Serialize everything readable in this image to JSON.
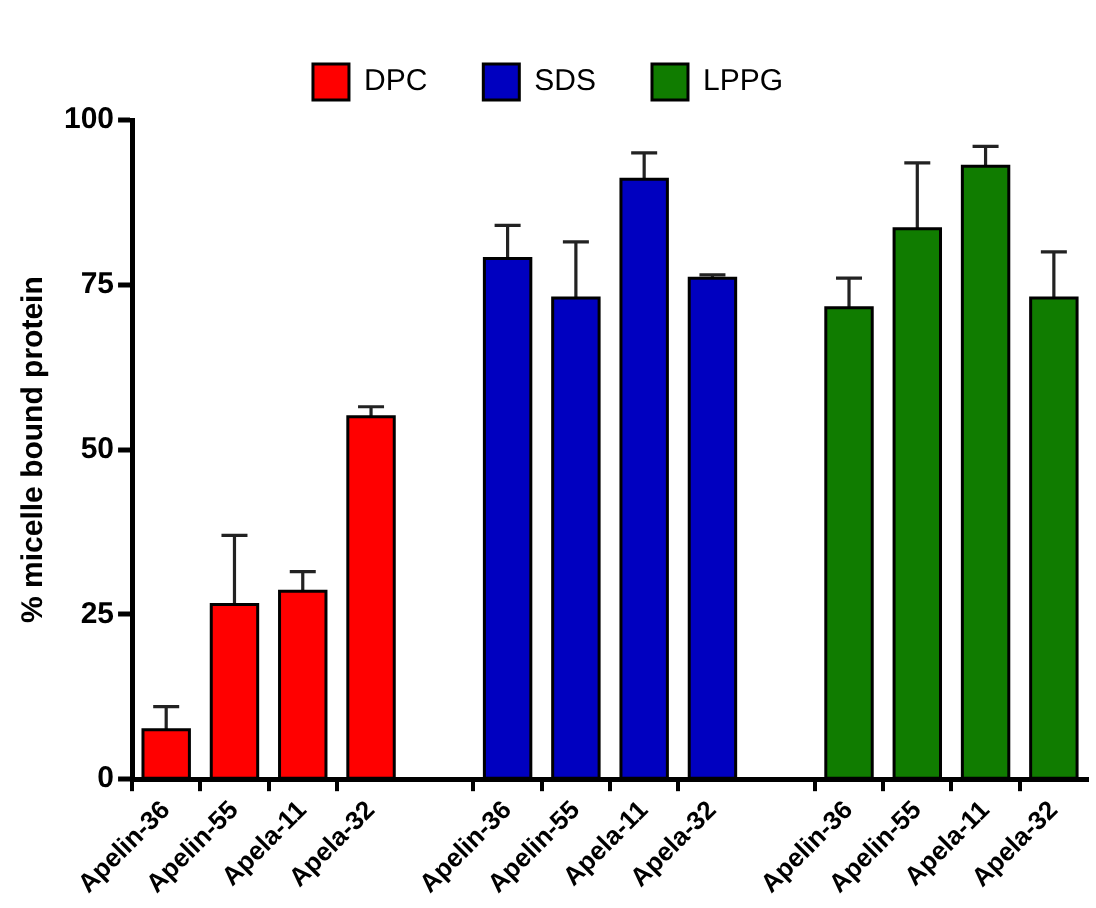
{
  "chart_data": {
    "type": "bar",
    "ylabel": "% micelle bound protein",
    "categories": [
      "Apelin-36",
      "Apelin-55",
      "Apela-11",
      "Apela-32",
      null,
      "Apelin-36",
      "Apelin-55",
      "Apela-11",
      "Apela-32",
      null,
      "Apelin-36",
      "Apelin-55",
      "Apela-11",
      "Apela-32"
    ],
    "series": [
      {
        "name": "DPC",
        "color": "#ff0000",
        "values": [
          7.5,
          26.5,
          28.5,
          55,
          null,
          null,
          null,
          null,
          null,
          null,
          null,
          null,
          null,
          null
        ],
        "errors": [
          [
            7.5,
            11
          ],
          [
            26.5,
            37
          ],
          [
            28.5,
            31.5
          ],
          [
            55,
            56.5
          ],
          null,
          null,
          null,
          null,
          null,
          null,
          null,
          null,
          null,
          null
        ]
      },
      {
        "name": "SDS",
        "color": "#0000c0",
        "values": [
          null,
          null,
          null,
          null,
          null,
          79,
          73,
          91,
          76,
          null,
          null,
          null,
          null,
          null
        ],
        "errors": [
          null,
          null,
          null,
          null,
          null,
          [
            79,
            84
          ],
          [
            73,
            81.5
          ],
          [
            91,
            95
          ],
          [
            76,
            76.5
          ],
          null,
          null,
          null,
          null,
          null
        ]
      },
      {
        "name": "LPPG",
        "color": "#107c00",
        "values": [
          null,
          null,
          null,
          null,
          null,
          null,
          null,
          null,
          null,
          null,
          71.5,
          83.5,
          93,
          73
        ],
        "errors": [
          null,
          null,
          null,
          null,
          null,
          null,
          null,
          null,
          null,
          null,
          [
            71.5,
            76
          ],
          [
            83.5,
            93.5
          ],
          [
            93,
            96
          ],
          [
            73,
            80
          ]
        ]
      }
    ],
    "ylim": [
      0,
      100
    ],
    "yticks": [
      0,
      25,
      50,
      75,
      100
    ],
    "grid": false,
    "legend": "top"
  }
}
